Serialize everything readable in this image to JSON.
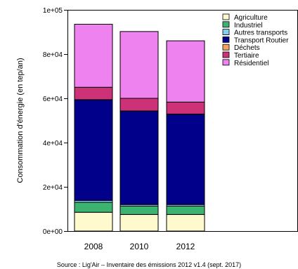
{
  "chart_data": {
    "type": "bar",
    "stacked": true,
    "categories": [
      "2008",
      "2010",
      "2012"
    ],
    "ylabel": "Consommation d'énergie (en tep/an)",
    "xlabel": "",
    "ylim": [
      0,
      100000
    ],
    "yticks": [
      0,
      20000,
      40000,
      60000,
      80000,
      100000
    ],
    "ytick_labels": [
      "0e+00",
      "2e+04",
      "4e+04",
      "6e+04",
      "8e+04",
      "1e+05"
    ],
    "grid": false,
    "legend_position": "top-right",
    "series": [
      {
        "name": "Agriculture",
        "color": "#FFFACD",
        "values": [
          8500,
          7500,
          7500
        ]
      },
      {
        "name": "Industriel",
        "color": "#3CB371",
        "values": [
          4500,
          3800,
          3800
        ]
      },
      {
        "name": "Autres transports",
        "color": "#87CEEB",
        "values": [
          800,
          700,
          700
        ]
      },
      {
        "name": "Transport Routier",
        "color": "#00008B",
        "values": [
          45500,
          42200,
          40800
        ]
      },
      {
        "name": "Déchets",
        "color": "#F4A460",
        "values": [
          100,
          100,
          100
        ]
      },
      {
        "name": "Tertiaire",
        "color": "#CD3278",
        "values": [
          5600,
          5700,
          5400
        ]
      },
      {
        "name": "Résidentiel",
        "color": "#EE82EE",
        "values": [
          28500,
          30200,
          27700
        ]
      }
    ],
    "caption": "Source : Lig'Air – Inventaire des émissions 2012 v1.4 (sept. 2017)"
  }
}
